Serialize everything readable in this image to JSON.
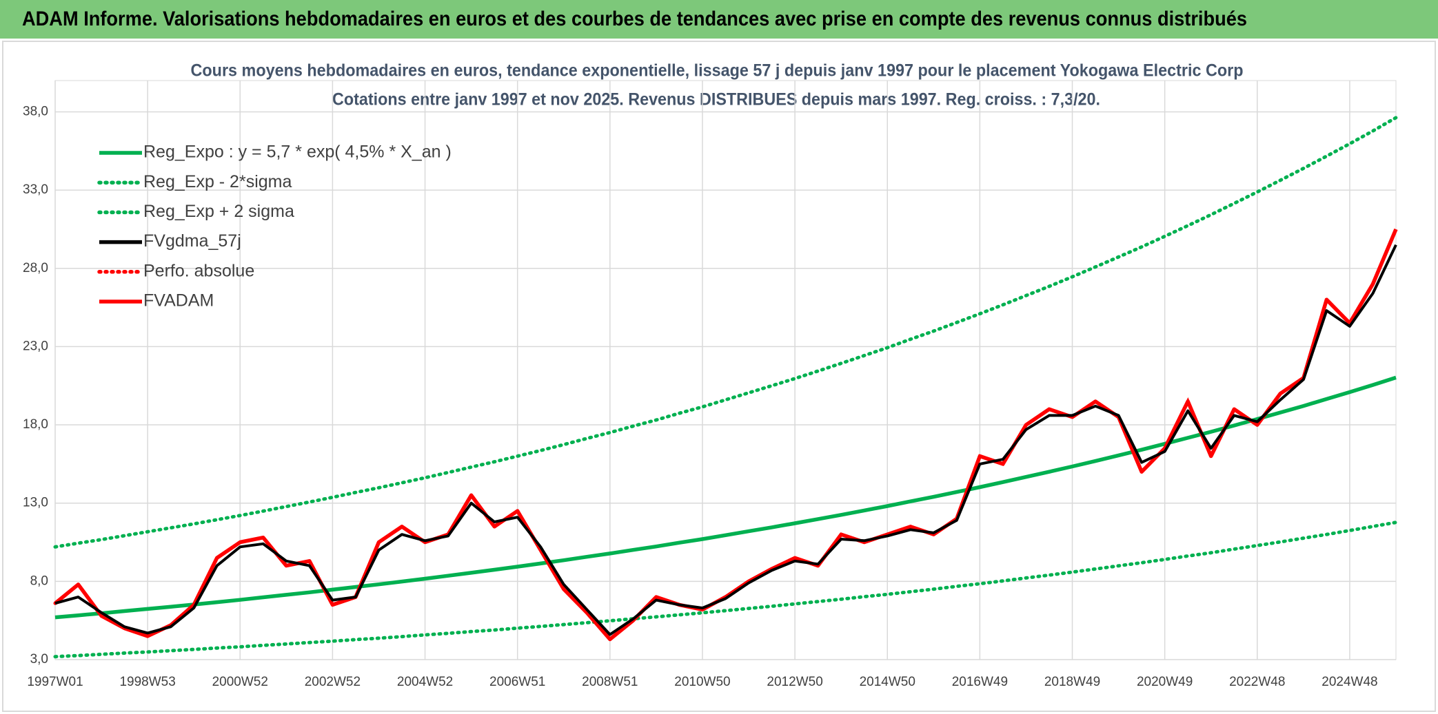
{
  "header": {
    "title": "ADAM Informe. Valorisations hebdomadaires en euros et des courbes de tendances avec prise en compte des revenus connus distribués"
  },
  "chart_data": {
    "type": "line",
    "title": "Cours moyens hebdomadaires en euros, tendance exponentielle, lissage 57 j depuis janv 1997 pour le placement Yokogawa Electric Corp",
    "subtitle": "Cotations entre janv 1997 et nov 2025. Revenus DISTRIBUES depuis mars 1997. Reg. croiss. : 7,3/20.",
    "categories": [
      "1997W01",
      null,
      null,
      null,
      "1998W53",
      null,
      null,
      null,
      "2000W52",
      null,
      null,
      null,
      "2002W52",
      null,
      null,
      null,
      "2004W52",
      null,
      null,
      null,
      "2006W51",
      null,
      null,
      null,
      "2008W51",
      null,
      null,
      null,
      "2010W50",
      null,
      null,
      null,
      "2012W50",
      null,
      null,
      null,
      "2014W50",
      null,
      null,
      null,
      "2016W49",
      null,
      null,
      null,
      "2018W49",
      null,
      null,
      null,
      "2020W49",
      null,
      null,
      null,
      "2022W48",
      null,
      null,
      null,
      "2024W48",
      null,
      null
    ],
    "ylim": [
      3,
      40
    ],
    "yticks": [
      {
        "value": 3,
        "label": "3,0"
      },
      {
        "value": 8,
        "label": "8,0"
      },
      {
        "value": 13,
        "label": "13,0"
      },
      {
        "value": 18,
        "label": "18,0"
      },
      {
        "value": 23,
        "label": "23,0"
      },
      {
        "value": 28,
        "label": "28,0"
      },
      {
        "value": 33,
        "label": "33,0"
      },
      {
        "value": 38,
        "label": "38,0"
      }
    ],
    "grid": true,
    "legend": "top-left",
    "series": [
      {
        "name": "Reg_Expo : y = 5,7 * exp( 4,5% *  X_an )",
        "color": "#00b050",
        "line_style": "solid",
        "values": [
          5.7,
          5.83,
          5.96,
          6.1,
          6.24,
          6.38,
          6.52,
          6.67,
          6.82,
          6.98,
          7.14,
          7.3,
          7.47,
          7.64,
          7.81,
          7.99,
          8.17,
          8.36,
          8.55,
          8.74,
          8.94,
          9.14,
          9.35,
          9.57,
          9.78,
          10.01,
          10.23,
          10.47,
          10.7,
          10.95,
          11.2,
          11.45,
          11.71,
          11.98,
          12.25,
          12.53,
          12.81,
          13.11,
          13.4,
          13.71,
          14.02,
          14.34,
          14.67,
          15.0,
          15.34,
          15.69,
          16.05,
          16.41,
          16.79,
          17.17,
          17.56,
          17.96,
          18.37,
          18.79,
          19.21,
          19.65,
          20.09,
          20.55,
          21.02
        ]
      },
      {
        "name": "Reg_Exp - 2*sigma",
        "color": "#00b050",
        "line_style": "dotted",
        "values": [
          3.19,
          3.26,
          3.34,
          3.42,
          3.49,
          3.57,
          3.65,
          3.74,
          3.82,
          3.91,
          4.0,
          4.09,
          4.18,
          4.28,
          4.37,
          4.47,
          4.58,
          4.68,
          4.79,
          4.89,
          5.01,
          5.12,
          5.24,
          5.36,
          5.48,
          5.61,
          5.73,
          5.86,
          5.99,
          6.13,
          6.27,
          6.41,
          6.56,
          6.71,
          6.86,
          7.02,
          7.17,
          7.34,
          7.5,
          7.68,
          7.85,
          8.03,
          8.22,
          8.4,
          8.59,
          8.79,
          8.99,
          9.19,
          9.4,
          9.62,
          9.83,
          10.06,
          10.29,
          10.52,
          10.76,
          11.0,
          11.25,
          11.51,
          11.77
        ]
      },
      {
        "name": "Reg_Exp + 2 sigma",
        "color": "#00b050",
        "line_style": "dotted",
        "values": [
          10.2,
          10.44,
          10.67,
          10.92,
          11.17,
          11.42,
          11.67,
          11.94,
          12.21,
          12.49,
          12.78,
          13.07,
          13.37,
          13.68,
          13.98,
          14.3,
          14.62,
          14.96,
          15.3,
          15.64,
          16.0,
          16.36,
          16.74,
          17.13,
          17.51,
          17.92,
          18.31,
          18.74,
          19.15,
          19.6,
          20.05,
          20.5,
          20.96,
          21.44,
          21.93,
          22.43,
          22.93,
          23.47,
          23.99,
          24.54,
          25.1,
          25.67,
          26.26,
          26.85,
          27.46,
          28.09,
          28.73,
          29.37,
          30.05,
          30.73,
          31.43,
          32.15,
          32.88,
          33.63,
          34.39,
          35.17,
          35.96,
          36.78,
          37.63
        ]
      },
      {
        "name": "FVgdma_57j",
        "color": "#000000",
        "line_style": "solid",
        "values": [
          6.6,
          7.0,
          6.0,
          5.1,
          4.7,
          5.1,
          6.3,
          9.0,
          10.2,
          10.4,
          9.3,
          9.0,
          6.8,
          7.0,
          10.0,
          11.0,
          10.6,
          10.9,
          13.0,
          11.8,
          12.1,
          10.2,
          7.8,
          6.2,
          4.6,
          5.6,
          6.8,
          6.5,
          6.3,
          6.9,
          7.9,
          8.7,
          9.3,
          9.1,
          10.7,
          10.6,
          10.9,
          11.3,
          11.1,
          11.9,
          15.5,
          15.8,
          17.7,
          18.6,
          18.6,
          19.2,
          18.6,
          15.6,
          16.3,
          18.9,
          16.5,
          18.6,
          18.2,
          19.6,
          20.9,
          25.3,
          24.3,
          26.4,
          29.5
        ]
      },
      {
        "name": "Perfo. absolue",
        "color": "#ff0000",
        "line_style": "dotted",
        "values": [
          6.6,
          7.8,
          5.8,
          5.0,
          4.5,
          5.2,
          6.5,
          9.5,
          10.5,
          10.8,
          9.0,
          9.3,
          6.5,
          7.0,
          10.5,
          11.5,
          10.5,
          11.0,
          13.5,
          11.5,
          12.5,
          10.0,
          7.5,
          6.0,
          4.3,
          5.5,
          7.0,
          6.5,
          6.2,
          7.0,
          8.0,
          8.8,
          9.5,
          9.0,
          11.0,
          10.5,
          11.0,
          11.5,
          11.0,
          12.0,
          16.0,
          15.5,
          18.0,
          19.0,
          18.5,
          19.5,
          18.5,
          15.0,
          16.5,
          19.5,
          16.0,
          19.0,
          18.0,
          20.0,
          21.0,
          26.0,
          24.5,
          27.0,
          30.5
        ]
      },
      {
        "name": "FVADAM",
        "color": "#ff0000",
        "line_style": "solid",
        "values": [
          6.6,
          7.8,
          5.8,
          5.0,
          4.5,
          5.2,
          6.5,
          9.5,
          10.5,
          10.8,
          9.0,
          9.3,
          6.5,
          7.0,
          10.5,
          11.5,
          10.5,
          11.0,
          13.5,
          11.5,
          12.5,
          10.0,
          7.5,
          6.0,
          4.3,
          5.5,
          7.0,
          6.5,
          6.2,
          7.0,
          8.0,
          8.8,
          9.5,
          9.0,
          11.0,
          10.5,
          11.0,
          11.5,
          11.0,
          12.0,
          16.0,
          15.5,
          18.0,
          19.0,
          18.5,
          19.5,
          18.5,
          15.0,
          16.5,
          19.5,
          16.0,
          19.0,
          18.0,
          20.0,
          21.0,
          26.0,
          24.5,
          27.0,
          30.5
        ]
      }
    ]
  }
}
